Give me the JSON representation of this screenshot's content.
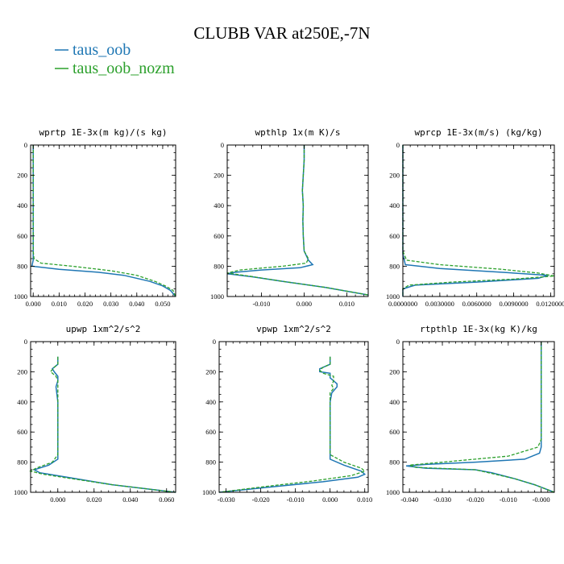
{
  "title": "CLUBB VAR at250E,-7N",
  "legend": [
    {
      "label": "taus_oob",
      "color": "#1f77b4",
      "dash": false
    },
    {
      "label": "taus_oob_nozm",
      "color": "#2ca02c",
      "dash": true
    }
  ],
  "chart_data": [
    {
      "type": "line",
      "title": "wprtp  1E-3x(m kg)/(s kg)",
      "xlim": [
        -0.001,
        0.055
      ],
      "ylim": [
        1000,
        0
      ],
      "xticks": [
        0.0,
        0.01,
        0.02,
        0.03,
        0.04,
        0.05
      ],
      "xtick_labels": [
        "0.000",
        "0.010",
        "0.020",
        "0.030",
        "0.040",
        "0.050"
      ],
      "yticks": [
        0,
        200,
        400,
        600,
        800,
        1000
      ],
      "series": [
        {
          "name": "taus_oob",
          "points": [
            [
              0,
              0
            ],
            [
              0,
              200
            ],
            [
              0,
              400
            ],
            [
              0,
              600
            ],
            [
              0,
              700
            ],
            [
              0,
              760
            ],
            [
              -0.0005,
              800
            ],
            [
              0.01,
              820
            ],
            [
              0.025,
              840
            ],
            [
              0.035,
              860
            ],
            [
              0.045,
              900
            ],
            [
              0.05,
              930
            ],
            [
              0.053,
              960
            ],
            [
              0.055,
              1000
            ]
          ]
        },
        {
          "name": "taus_oob_nozm",
          "points": [
            [
              0,
              0
            ],
            [
              0,
              200
            ],
            [
              0,
              400
            ],
            [
              0,
              600
            ],
            [
              0,
              700
            ],
            [
              0.0003,
              750
            ],
            [
              0.003,
              780
            ],
            [
              0.015,
              800
            ],
            [
              0.03,
              830
            ],
            [
              0.04,
              860
            ],
            [
              0.047,
              900
            ],
            [
              0.051,
              930
            ],
            [
              0.054,
              960
            ],
            [
              0.055,
              1000
            ]
          ]
        }
      ]
    },
    {
      "type": "line",
      "title": "wpthlp  1x(m K)/s",
      "xlim": [
        -0.018,
        0.015
      ],
      "ylim": [
        1000,
        0
      ],
      "xticks": [
        -0.01,
        0.0,
        0.01
      ],
      "xtick_labels": [
        "-0.010",
        "0.000",
        "0.010"
      ],
      "yticks": [
        0,
        200,
        400,
        600,
        800,
        1000
      ],
      "series": [
        {
          "name": "taus_oob",
          "points": [
            [
              0,
              0
            ],
            [
              0,
              100
            ],
            [
              -0.0002,
              200
            ],
            [
              -0.0004,
              300
            ],
            [
              -0.0002,
              400
            ],
            [
              -0.0003,
              500
            ],
            [
              -0.0002,
              600
            ],
            [
              0,
              700
            ],
            [
              0.001,
              760
            ],
            [
              0.002,
              790
            ],
            [
              -0.001,
              810
            ],
            [
              -0.01,
              825
            ],
            [
              -0.016,
              840
            ],
            [
              -0.018,
              850
            ],
            [
              -0.012,
              870
            ],
            [
              -0.005,
              900
            ],
            [
              0.005,
              940
            ],
            [
              0.015,
              990
            ]
          ]
        },
        {
          "name": "taus_oob_nozm",
          "points": [
            [
              0,
              0
            ],
            [
              0,
              100
            ],
            [
              -0.0002,
              200
            ],
            [
              -0.0004,
              300
            ],
            [
              -0.0002,
              400
            ],
            [
              -0.0003,
              500
            ],
            [
              -0.0002,
              600
            ],
            [
              0,
              700
            ],
            [
              0.001,
              750
            ],
            [
              0.0005,
              780
            ],
            [
              -0.005,
              800
            ],
            [
              -0.015,
              825
            ],
            [
              -0.018,
              845
            ],
            [
              -0.013,
              865
            ],
            [
              -0.005,
              900
            ],
            [
              0.005,
              940
            ],
            [
              0.015,
              990
            ]
          ]
        }
      ]
    },
    {
      "type": "line",
      "title": "wprcp  1E-3x(m/s) (kg/kg)",
      "xlim": [
        0,
        0.0123
      ],
      "ylim": [
        1000,
        0
      ],
      "xticks": [
        0.0,
        0.003,
        0.006,
        0.009,
        0.012
      ],
      "xtick_labels": [
        "0.0000000",
        "0.0030000",
        "0.0060000",
        "0.0090000",
        "0.0120000"
      ],
      "yticks": [
        0,
        200,
        400,
        600,
        800,
        1000
      ],
      "series": [
        {
          "name": "taus_oob",
          "points": [
            [
              0,
              0
            ],
            [
              0,
              200
            ],
            [
              0,
              400
            ],
            [
              0,
              600
            ],
            [
              0,
              720
            ],
            [
              0.0002,
              790
            ],
            [
              0.003,
              815
            ],
            [
              0.008,
              840
            ],
            [
              0.0118,
              860
            ],
            [
              0.011,
              880
            ],
            [
              0.006,
              905
            ],
            [
              0.001,
              925
            ],
            [
              0,
              950
            ],
            [
              0,
              1000
            ]
          ]
        },
        {
          "name": "taus_oob_nozm",
          "points": [
            [
              0,
              0
            ],
            [
              0,
              200
            ],
            [
              0,
              400
            ],
            [
              0,
              600
            ],
            [
              0,
              700
            ],
            [
              0.0003,
              760
            ],
            [
              0.003,
              790
            ],
            [
              0.008,
              820
            ],
            [
              0.011,
              845
            ],
            [
              0.0123,
              865
            ],
            [
              0.009,
              885
            ],
            [
              0.004,
              905
            ],
            [
              0.0005,
              925
            ],
            [
              0,
              950
            ],
            [
              0,
              1000
            ]
          ]
        }
      ]
    },
    {
      "type": "line",
      "title": "upwp  1xm^2/s^2",
      "xlim": [
        -0.015,
        0.065
      ],
      "ylim": [
        1000,
        0
      ],
      "xticks": [
        0.0,
        0.02,
        0.04,
        0.06
      ],
      "xtick_labels": [
        "0.000",
        "0.020",
        "0.040",
        "0.060"
      ],
      "yticks": [
        0,
        200,
        400,
        600,
        800,
        1000
      ],
      "series": [
        {
          "name": "taus_oob",
          "points": [
            [
              0,
              100
            ],
            [
              0,
              150
            ],
            [
              -0.003,
              180
            ],
            [
              -0.002,
              200
            ],
            [
              0,
              230
            ],
            [
              0,
              260
            ],
            [
              -0.001,
              300
            ],
            [
              0,
              400
            ],
            [
              0,
              500
            ],
            [
              0,
              600
            ],
            [
              0,
              700
            ],
            [
              0,
              780
            ],
            [
              -0.005,
              820
            ],
            [
              -0.013,
              850
            ],
            [
              -0.01,
              870
            ],
            [
              0.005,
              900
            ],
            [
              0.03,
              950
            ],
            [
              0.065,
              1000
            ]
          ]
        },
        {
          "name": "taus_oob_nozm",
          "points": [
            [
              0,
              100
            ],
            [
              0,
              150
            ],
            [
              -0.002,
              170
            ],
            [
              -0.004,
              200
            ],
            [
              -0.001,
              230
            ],
            [
              0,
              260
            ],
            [
              0,
              300
            ],
            [
              0,
              400
            ],
            [
              0,
              500
            ],
            [
              0,
              600
            ],
            [
              0,
              700
            ],
            [
              0,
              750
            ],
            [
              -0.003,
              800
            ],
            [
              -0.012,
              840
            ],
            [
              -0.015,
              860
            ],
            [
              -0.008,
              880
            ],
            [
              0.005,
              905
            ],
            [
              0.03,
              950
            ],
            [
              0.065,
              1000
            ]
          ]
        }
      ]
    },
    {
      "type": "line",
      "title": "vpwp  1xm^2/s^2",
      "xlim": [
        -0.032,
        0.011
      ],
      "ylim": [
        1000,
        0
      ],
      "xticks": [
        -0.03,
        -0.02,
        -0.01,
        0.0,
        0.01
      ],
      "xtick_labels": [
        "-0.030",
        "-0.020",
        "-0.010",
        "0.000",
        "0.010"
      ],
      "yticks": [
        0,
        200,
        400,
        600,
        800,
        1000
      ],
      "series": [
        {
          "name": "taus_oob",
          "points": [
            [
              0,
              100
            ],
            [
              0,
              150
            ],
            [
              -0.003,
              180
            ],
            [
              -0.003,
              200
            ],
            [
              0,
              210
            ],
            [
              0,
              240
            ],
            [
              0.002,
              280
            ],
            [
              0.002,
              300
            ],
            [
              0.0005,
              340
            ],
            [
              0,
              400
            ],
            [
              0,
              500
            ],
            [
              0,
              600
            ],
            [
              0,
              700
            ],
            [
              0,
              780
            ],
            [
              0.004,
              820
            ],
            [
              0.009,
              860
            ],
            [
              0.01,
              880
            ],
            [
              0.008,
              900
            ],
            [
              -0.002,
              930
            ],
            [
              -0.015,
              960
            ],
            [
              -0.032,
              1000
            ]
          ]
        },
        {
          "name": "taus_oob_nozm",
          "points": [
            [
              0,
              100
            ],
            [
              0,
              150
            ],
            [
              -0.002,
              170
            ],
            [
              -0.003,
              190
            ],
            [
              -0.002,
              210
            ],
            [
              0.001,
              230
            ],
            [
              0.001,
              260
            ],
            [
              0.0005,
              290
            ],
            [
              0.001,
              310
            ],
            [
              0,
              340
            ],
            [
              0,
              400
            ],
            [
              0,
              500
            ],
            [
              0,
              600
            ],
            [
              0,
              700
            ],
            [
              0,
              750
            ],
            [
              0.004,
              800
            ],
            [
              0.009,
              840
            ],
            [
              0.01,
              860
            ],
            [
              0.006,
              890
            ],
            [
              -0.005,
              925
            ],
            [
              -0.018,
              960
            ],
            [
              -0.032,
              1000
            ]
          ]
        }
      ]
    },
    {
      "type": "line",
      "title": "rtpthlp  1E-3x(kg K)/kg",
      "xlim": [
        -0.042,
        0.004
      ],
      "ylim": [
        1000,
        0
      ],
      "xticks": [
        -0.04,
        -0.03,
        -0.02,
        -0.01,
        0.0
      ],
      "xtick_labels": [
        "-0.040",
        "-0.030",
        "-0.020",
        "-0.010",
        "-0.000"
      ],
      "yticks": [
        0,
        200,
        400,
        600,
        800,
        1000
      ],
      "series": [
        {
          "name": "taus_oob",
          "points": [
            [
              0,
              0
            ],
            [
              0,
              200
            ],
            [
              0,
              400
            ],
            [
              0,
              600
            ],
            [
              0,
              700
            ],
            [
              -0.0005,
              740
            ],
            [
              -0.005,
              780
            ],
            [
              -0.02,
              800
            ],
            [
              -0.035,
              815
            ],
            [
              -0.041,
              825
            ],
            [
              -0.035,
              840
            ],
            [
              -0.02,
              850
            ],
            [
              -0.015,
              870
            ],
            [
              -0.008,
              910
            ],
            [
              -0.002,
              950
            ],
            [
              0.004,
              1000
            ]
          ]
        },
        {
          "name": "taus_oob_nozm",
          "points": [
            [
              0,
              0
            ],
            [
              0,
              200
            ],
            [
              0,
              400
            ],
            [
              0,
              600
            ],
            [
              0,
              650
            ],
            [
              -0.001,
              700
            ],
            [
              -0.01,
              760
            ],
            [
              -0.03,
              800
            ],
            [
              -0.04,
              820
            ],
            [
              -0.038,
              835
            ],
            [
              -0.02,
              850
            ],
            [
              -0.016,
              870
            ],
            [
              -0.008,
              910
            ],
            [
              -0.002,
              950
            ],
            [
              0.004,
              1000
            ]
          ]
        }
      ]
    }
  ]
}
